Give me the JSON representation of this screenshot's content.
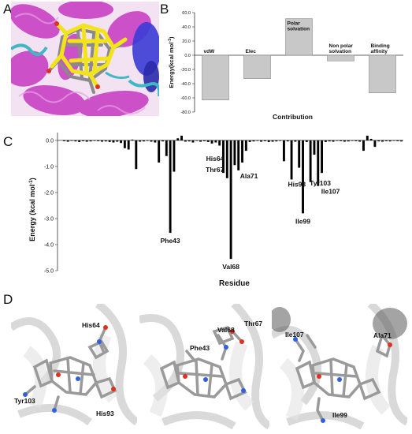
{
  "panels": {
    "a": {
      "letter": "A"
    },
    "b": {
      "letter": "B"
    },
    "c": {
      "letter": "C"
    },
    "d": {
      "letter": "D"
    }
  },
  "chart_data": [
    {
      "id": "B",
      "type": "bar",
      "categories": [
        "vdW",
        "Elec",
        "Polar solvation",
        "Non polar solvation",
        "Binding affinity"
      ],
      "category_labels": [
        [
          "vdW"
        ],
        [
          "Elec"
        ],
        [
          "Polar",
          "solvation"
        ],
        [
          "Non polar",
          "solvation"
        ],
        [
          "Binding",
          "affinity"
        ]
      ],
      "values": [
        -63.0,
        -33.0,
        51.5,
        -8.0,
        -53.0
      ],
      "xlabel": "Contribution",
      "ylabel": "Energy(kcal mol⁻¹)",
      "ylim": [
        -80,
        60
      ],
      "yticks": [
        60.0,
        40.0,
        20.0,
        0.0,
        -20.0,
        -40.0,
        -60.0,
        -80.0
      ],
      "ytick_labels": [
        "60.0",
        "40.0",
        "20.0",
        "0.0",
        "-20.0",
        "-40.0",
        "-60.0",
        "-80.0"
      ],
      "bar_color": "#c8c8c8",
      "grid": false
    },
    {
      "id": "C",
      "type": "bar",
      "values": [
        -0.03,
        -0.05,
        -0.02,
        -0.04,
        -0.06,
        -0.03,
        -0.05,
        -0.04,
        -0.02,
        -0.03,
        -0.05,
        -0.04,
        -0.06,
        -0.08,
        -0.05,
        -0.1,
        -0.3,
        -0.35,
        0.03,
        -1.1,
        -0.05,
        -0.04,
        -0.02,
        -0.05,
        -0.08,
        -0.85,
        -0.04,
        -0.6,
        -3.55,
        -1.2,
        0.08,
        0.18,
        -0.05,
        -0.04,
        -0.08,
        -0.02,
        -0.05,
        -0.03,
        -0.06,
        -0.12,
        -0.08,
        -0.2,
        -1.25,
        -1.45,
        -4.55,
        -0.95,
        -1.15,
        -0.85,
        -0.4,
        -0.06,
        -0.04,
        -0.02,
        -0.05,
        -0.03,
        -0.06,
        -0.05,
        -0.04,
        -0.02,
        -0.8,
        -0.04,
        -1.5,
        -0.05,
        -1.05,
        -2.8,
        -0.06,
        -1.6,
        -0.55,
        -1.75,
        -1.25,
        -0.06,
        -0.04,
        -0.05,
        -0.02,
        -0.03,
        -0.05,
        -0.04,
        -0.02,
        -0.03,
        -0.05,
        -0.4,
        0.18,
        0.06,
        -0.25,
        -0.04,
        -0.05,
        -0.03,
        -0.04,
        -0.02,
        -0.03,
        -0.04
      ],
      "xlabel": "Residue",
      "ylabel": "Energy (kcal mol⁻¹)",
      "ylim": [
        -5.0,
        0.3
      ],
      "yticks": [
        0.0,
        -1.0,
        -2.0,
        -3.0,
        -4.0,
        -5.0
      ],
      "ytick_labels": [
        "0.0",
        "-1.0",
        "-2.0",
        "-3.0",
        "-4.0",
        "-5.0"
      ],
      "bar_color": "#000000",
      "grid": false,
      "annotations": [
        {
          "text": "Phe43",
          "index": 28
        },
        {
          "text": "His64",
          "index": 43
        },
        {
          "text": "Thr67",
          "index": 43
        },
        {
          "text": "Val68",
          "index": 44
        },
        {
          "text": "Ala71",
          "index": 46
        },
        {
          "text": "His93",
          "index": 65
        },
        {
          "text": "Ile99",
          "index": 63
        },
        {
          "text": "Tyr103",
          "index": 68
        },
        {
          "text": "Ile107",
          "index": 67
        }
      ]
    }
  ],
  "panel_d": {
    "views": [
      {
        "labels": [
          "His64",
          "Tyr103",
          "His93"
        ]
      },
      {
        "labels": [
          "Val68",
          "Thr67",
          "Phe43"
        ]
      },
      {
        "labels": [
          "Ile107",
          "Ala71",
          "Ile99"
        ]
      }
    ]
  },
  "colors": {
    "helix_magenta": "#c637c0",
    "helix_blue": "#3b3bd6",
    "coil_cyan": "#3fb7c4",
    "ligand_yellow": "#f2e31a",
    "carbon_grey": "#9a9a9a",
    "oxygen_red": "#e03020",
    "nitrogen_blue": "#3060e0",
    "cartoon_grey": "#d6d6d6"
  }
}
